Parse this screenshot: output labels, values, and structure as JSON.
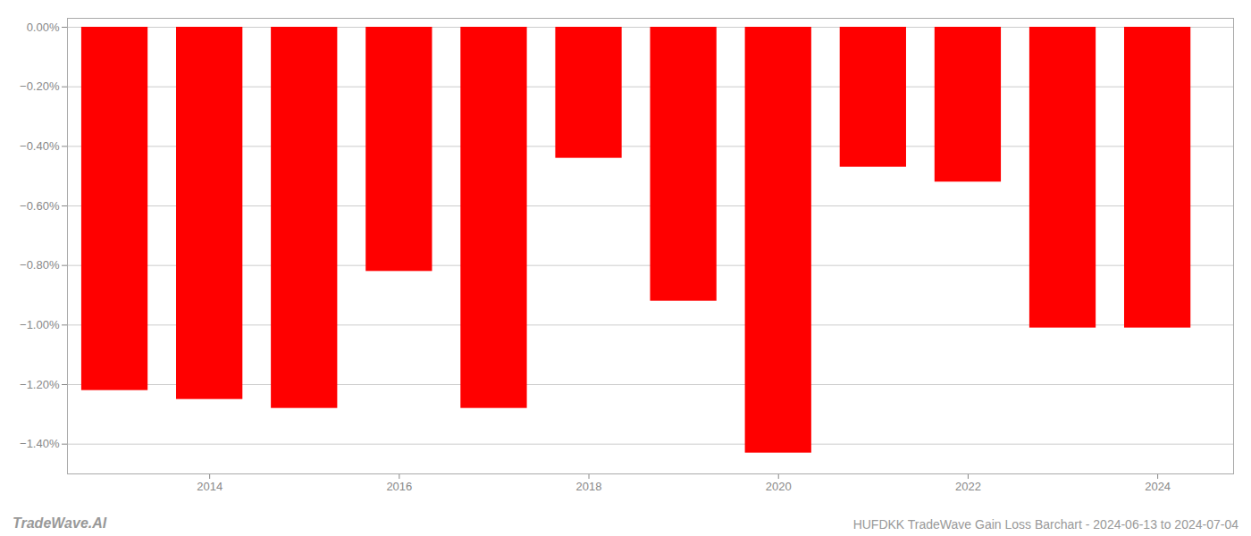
{
  "chart_data": {
    "type": "bar",
    "title": "HUFDKK TradeWave Gain Loss Barchart - 2024-06-13 to 2024-07-04",
    "annotations": [
      "TradeWave.AI"
    ],
    "x": [
      2013,
      2014,
      2015,
      2016,
      2017,
      2018,
      2019,
      2020,
      2021,
      2022,
      2023,
      2024
    ],
    "values": [
      -0.0122,
      -0.0125,
      -0.0128,
      -0.0082,
      -0.0128,
      -0.0044,
      -0.0092,
      -0.0143,
      -0.0047,
      -0.0052,
      -0.0101,
      -0.0101
    ],
    "color": "#ff0000",
    "xlim": [
      2012.5,
      2024.8
    ],
    "xticks": [
      2014,
      2016,
      2018,
      2020,
      2022,
      2024
    ],
    "ylim": [
      -0.015,
      0.0003
    ],
    "yticks": [
      {
        "value": 0.0,
        "label": "0.00%"
      },
      {
        "value": -0.002,
        "label": "−0.20%"
      },
      {
        "value": -0.004,
        "label": "−0.40%"
      },
      {
        "value": -0.006,
        "label": "−0.60%"
      },
      {
        "value": -0.008,
        "label": "−0.80%"
      },
      {
        "value": -0.01,
        "label": "−1.00%"
      },
      {
        "value": -0.012,
        "label": "−1.20%"
      },
      {
        "value": -0.014,
        "label": "−1.40%"
      }
    ],
    "grid": true
  }
}
